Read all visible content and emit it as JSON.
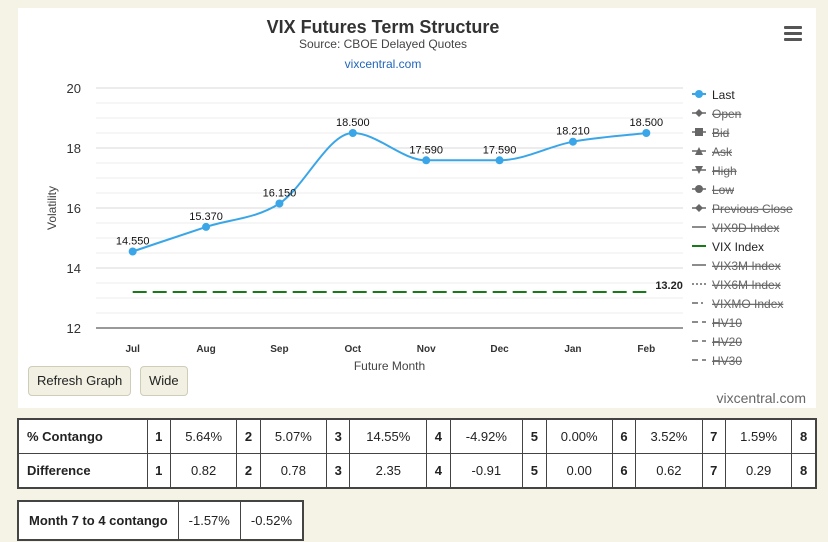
{
  "chart_data": {
    "type": "line",
    "title": "VIX Futures Term Structure",
    "subtitle": "Source: CBOE Delayed Quotes",
    "source_link": "vixcentral.com",
    "xlabel": "Future Month",
    "ylabel": "Volatility",
    "categories": [
      "Jul",
      "Aug",
      "Sep",
      "Oct",
      "Nov",
      "Dec",
      "Jan",
      "Feb"
    ],
    "ylim": [
      12,
      20
    ],
    "yticks": [
      12,
      14,
      16,
      18,
      20
    ],
    "grid": true,
    "legend_position": "right",
    "series": [
      {
        "name": "Last",
        "values": [
          14.55,
          15.37,
          16.15,
          18.5,
          17.59,
          17.59,
          18.21,
          18.5
        ],
        "labels": [
          "14.550",
          "15.370",
          "16.150",
          "18.500",
          "17.590",
          "17.590",
          "18.210",
          "18.500"
        ],
        "color": "#3aa6e8"
      },
      {
        "name": "VIX Index",
        "value": 13.2,
        "label": "13.20",
        "color": "#1a7a1a",
        "dash": "long-dash"
      }
    ],
    "legend": [
      {
        "name": "Last",
        "symbol": "circle-line",
        "color": "#3aa6e8",
        "active": true
      },
      {
        "name": "Open",
        "symbol": "diamond-line",
        "color": "#555555",
        "active": false
      },
      {
        "name": "Bid",
        "symbol": "square-line",
        "color": "#555555",
        "active": false
      },
      {
        "name": "Ask",
        "symbol": "triangle-line",
        "color": "#555555",
        "active": false
      },
      {
        "name": "High",
        "symbol": "triangle-down-line",
        "color": "#555555",
        "active": false
      },
      {
        "name": "Low",
        "symbol": "circle-line",
        "color": "#555555",
        "active": false
      },
      {
        "name": "Previous Close",
        "symbol": "diamond-line",
        "color": "#555555",
        "active": false
      },
      {
        "name": "VIX9D Index",
        "symbol": "line",
        "color": "#555555",
        "active": false
      },
      {
        "name": "VIX Index",
        "symbol": "line",
        "color": "#1a7a1a",
        "active": true
      },
      {
        "name": "VIX3M Index",
        "symbol": "line",
        "color": "#555555",
        "active": false
      },
      {
        "name": "VIX6M Index",
        "symbol": "dot-line",
        "color": "#555555",
        "active": false
      },
      {
        "name": "VIXMO Index",
        "symbol": "dash-dot-line",
        "color": "#555555",
        "active": false
      },
      {
        "name": "HV10",
        "symbol": "dash-line",
        "color": "#555555",
        "active": false
      },
      {
        "name": "HV20",
        "symbol": "dash-line",
        "color": "#555555",
        "active": false
      },
      {
        "name": "HV30",
        "symbol": "dash-line",
        "color": "#555555",
        "active": false
      }
    ]
  },
  "buttons": {
    "refresh": "Refresh Graph",
    "wide": "Wide"
  },
  "watermark": "vixcentral.com",
  "contango_table": {
    "rows": [
      {
        "label": "% Contango",
        "cells": [
          [
            "1",
            "5.64%"
          ],
          [
            "2",
            "5.07%"
          ],
          [
            "3",
            "14.55%"
          ],
          [
            "4",
            "-4.92%"
          ],
          [
            "5",
            "0.00%"
          ],
          [
            "6",
            "3.52%"
          ],
          [
            "7",
            "1.59%"
          ]
        ],
        "last": "8"
      },
      {
        "label": "Difference",
        "cells": [
          [
            "1",
            "0.82"
          ],
          [
            "2",
            "0.78"
          ],
          [
            "3",
            "2.35"
          ],
          [
            "4",
            "-0.91"
          ],
          [
            "5",
            "0.00"
          ],
          [
            "6",
            "0.62"
          ],
          [
            "7",
            "0.29"
          ]
        ],
        "last": "8"
      }
    ]
  },
  "month_table": {
    "label": "Month 7 to 4 contango",
    "values": [
      "-1.57%",
      "-0.52%"
    ]
  }
}
